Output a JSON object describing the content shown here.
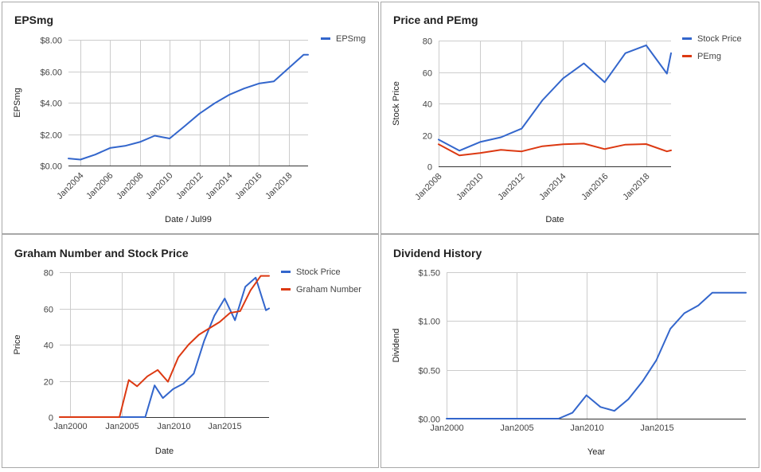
{
  "colors": {
    "blue": "#3366cc",
    "red": "#dc3912"
  },
  "chart_data": [
    {
      "type": "line",
      "title": "EPSmg",
      "xlabel": "Date / Jul99",
      "ylabel": "EPSmg",
      "x_type": "year",
      "xlim": [
        2003.2,
        2019.3
      ],
      "ylim": [
        0,
        8
      ],
      "x_ticks": [
        2004,
        2006,
        2008,
        2010,
        2012,
        2014,
        2016,
        2018
      ],
      "x_tick_labels": [
        "Jan2004",
        "Jan2006",
        "Jan2008",
        "Jan2010",
        "Jan2012",
        "Jan2014",
        "Jan2016",
        "Jan2018"
      ],
      "x_tick_rotate": true,
      "y_ticks": [
        0,
        2,
        4,
        6,
        8
      ],
      "y_tick_labels": [
        "$0.00",
        "$2.00",
        "$4.00",
        "$6.00",
        "$8.00"
      ],
      "legend": "right",
      "grid": true,
      "series": [
        {
          "name": "EPSmg",
          "color": "#3366cc",
          "x": [
            2003.2,
            2004,
            2005,
            2006,
            2007,
            2008,
            2009,
            2010,
            2011,
            2012,
            2013,
            2014,
            2015,
            2016,
            2017,
            2018,
            2019,
            2019.3
          ],
          "y": [
            0.45,
            0.38,
            0.7,
            1.12,
            1.25,
            1.5,
            1.9,
            1.72,
            2.5,
            3.3,
            3.95,
            4.5,
            4.9,
            5.22,
            5.35,
            6.2,
            7.05,
            7.05
          ]
        }
      ]
    },
    {
      "type": "line",
      "title": "Price and PEmg",
      "xlabel": "Date",
      "ylabel": "Stock Price",
      "x_type": "year",
      "xlim": [
        2008,
        2019.2
      ],
      "ylim": [
        0,
        80
      ],
      "x_ticks": [
        2008,
        2010,
        2012,
        2014,
        2016,
        2018
      ],
      "x_tick_labels": [
        "Jan2008",
        "Jan2010",
        "Jan2012",
        "Jan2014",
        "Jan2016",
        "Jan2018"
      ],
      "x_tick_rotate": true,
      "y_ticks": [
        0,
        20,
        40,
        60,
        80
      ],
      "y_tick_labels": [
        "0",
        "20",
        "40",
        "60",
        "80"
      ],
      "legend": "right",
      "grid": true,
      "series": [
        {
          "name": "Stock Price",
          "color": "#3366cc",
          "x": [
            2008,
            2009,
            2010,
            2011,
            2012,
            2013,
            2014,
            2015,
            2016,
            2017,
            2018,
            2019,
            2019.2
          ],
          "y": [
            17,
            10,
            15.5,
            18.5,
            24,
            42,
            56,
            65.5,
            53.5,
            72,
            77,
            59,
            72
          ]
        },
        {
          "name": "PEmg",
          "color": "#dc3912",
          "x": [
            2008,
            2009,
            2010,
            2011,
            2012,
            2013,
            2014,
            2015,
            2016,
            2017,
            2018,
            2019,
            2019.2
          ],
          "y": [
            14,
            7,
            8.5,
            10.5,
            9.5,
            12.8,
            14,
            14.5,
            11,
            13.8,
            14.2,
            9.5,
            10.2
          ]
        }
      ]
    },
    {
      "type": "line",
      "title": "Graham Number and Stock Price",
      "xlabel": "Date",
      "ylabel": "Price",
      "x_type": "year",
      "xlim": [
        1999,
        2019.3
      ],
      "ylim": [
        0,
        80
      ],
      "x_ticks": [
        2000,
        2005,
        2010,
        2015
      ],
      "x_tick_labels": [
        "Jan2000",
        "Jan2005",
        "Jan2010",
        "Jan2015"
      ],
      "x_tick_rotate": false,
      "y_ticks": [
        0,
        20,
        40,
        60,
        80
      ],
      "y_tick_labels": [
        "0",
        "20",
        "40",
        "60",
        "80"
      ],
      "legend": "right",
      "grid": true,
      "series": [
        {
          "name": "Stock Price",
          "color": "#3366cc",
          "x": [
            1999,
            2007.3,
            2008.2,
            2009,
            2010,
            2011,
            2012,
            2013,
            2014,
            2015,
            2016,
            2017,
            2018,
            2019,
            2019.3
          ],
          "y": [
            0,
            0,
            17.5,
            10.5,
            15.5,
            18.5,
            24,
            42,
            56,
            65.5,
            53.5,
            72,
            77,
            59,
            60
          ]
        },
        {
          "name": "Graham Number",
          "color": "#dc3912",
          "x": [
            1999,
            2004.8,
            2005.7,
            2006.5,
            2007.5,
            2008.5,
            2009.5,
            2010.5,
            2011.5,
            2012.5,
            2013.5,
            2014.5,
            2015.5,
            2016.5,
            2017.5,
            2018.5,
            2019.3
          ],
          "y": [
            0,
            0,
            20.5,
            17,
            22.5,
            26,
            19.5,
            33,
            40,
            45.5,
            49,
            52.5,
            57.5,
            58.5,
            70,
            78,
            78
          ]
        }
      ]
    },
    {
      "type": "line",
      "title": "Dividend History",
      "xlabel": "Year",
      "ylabel": "Dividend",
      "x_type": "year",
      "xlim": [
        2000,
        2021.4
      ],
      "ylim": [
        0,
        1.5
      ],
      "x_ticks": [
        2000,
        2005,
        2010,
        2015
      ],
      "x_tick_labels": [
        "Jan2000",
        "Jan2005",
        "Jan2010",
        "Jan2015"
      ],
      "x_tick_rotate": false,
      "y_ticks": [
        0,
        0.5,
        1.0,
        1.5
      ],
      "y_tick_labels": [
        "$0.00",
        "$0.50",
        "$1.00",
        "$1.50"
      ],
      "legend": "none",
      "grid": true,
      "series": [
        {
          "name": "Dividend",
          "color": "#3366cc",
          "x": [
            2000,
            2008,
            2009,
            2010,
            2011,
            2012,
            2013,
            2014,
            2015,
            2016,
            2017,
            2018,
            2019,
            2020,
            2021.4
          ],
          "y": [
            0,
            0,
            0.06,
            0.24,
            0.12,
            0.08,
            0.2,
            0.38,
            0.6,
            0.92,
            1.08,
            1.16,
            1.29,
            1.29,
            1.29
          ]
        }
      ]
    }
  ]
}
